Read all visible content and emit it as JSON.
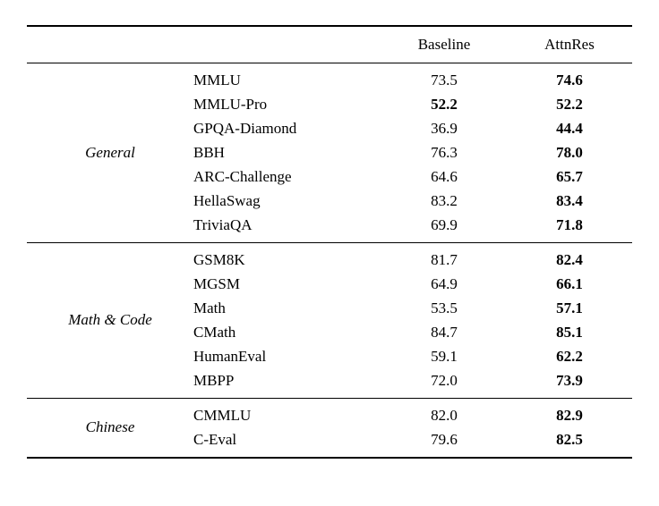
{
  "table": {
    "columns": [
      "Baseline",
      "AttnRes"
    ],
    "groups": [
      {
        "label": "General",
        "rows": [
          {
            "name": "MMLU",
            "baseline": "73.5",
            "attnres": "74.6",
            "baseline_bold": false
          },
          {
            "name": "MMLU-Pro",
            "baseline": "52.2",
            "attnres": "52.2",
            "baseline_bold": true
          },
          {
            "name": "GPQA-Diamond",
            "baseline": "36.9",
            "attnres": "44.4",
            "baseline_bold": false
          },
          {
            "name": "BBH",
            "baseline": "76.3",
            "attnres": "78.0",
            "baseline_bold": false
          },
          {
            "name": "ARC-Challenge",
            "baseline": "64.6",
            "attnres": "65.7",
            "baseline_bold": false
          },
          {
            "name": "HellaSwag",
            "baseline": "83.2",
            "attnres": "83.4",
            "baseline_bold": false
          },
          {
            "name": "TriviaQA",
            "baseline": "69.9",
            "attnres": "71.8",
            "baseline_bold": false
          }
        ]
      },
      {
        "label": "Math & Code",
        "rows": [
          {
            "name": "GSM8K",
            "baseline": "81.7",
            "attnres": "82.4",
            "baseline_bold": false
          },
          {
            "name": "MGSM",
            "baseline": "64.9",
            "attnres": "66.1",
            "baseline_bold": false
          },
          {
            "name": "Math",
            "baseline": "53.5",
            "attnres": "57.1",
            "baseline_bold": false
          },
          {
            "name": "CMath",
            "baseline": "84.7",
            "attnres": "85.1",
            "baseline_bold": false
          },
          {
            "name": "HumanEval",
            "baseline": "59.1",
            "attnres": "62.2",
            "baseline_bold": false
          },
          {
            "name": "MBPP",
            "baseline": "72.0",
            "attnres": "73.9",
            "baseline_bold": false
          }
        ]
      },
      {
        "label": "Chinese",
        "rows": [
          {
            "name": "CMMLU",
            "baseline": "82.0",
            "attnres": "82.9",
            "baseline_bold": false
          },
          {
            "name": "C-Eval",
            "baseline": "79.6",
            "attnres": "82.5",
            "baseline_bold": false
          }
        ]
      }
    ]
  }
}
